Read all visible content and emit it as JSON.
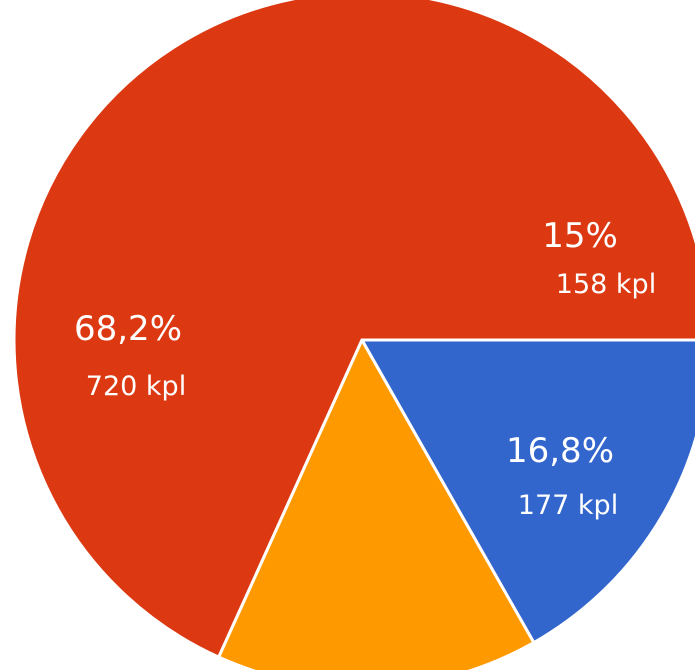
{
  "chart_data": {
    "type": "pie",
    "slices": [
      {
        "value": 720,
        "percent_label": "68,2%",
        "count_label": "720 kpl",
        "color": "#dc3912"
      },
      {
        "value": 158,
        "percent_label": "15%",
        "count_label": "158 kpl",
        "color": "#ff9900"
      },
      {
        "value": 177,
        "percent_label": "16,8%",
        "count_label": "177 kpl",
        "color": "#3366cc"
      }
    ],
    "start_angle_deg": 0,
    "direction": "counterclockwise",
    "legend": "none"
  }
}
